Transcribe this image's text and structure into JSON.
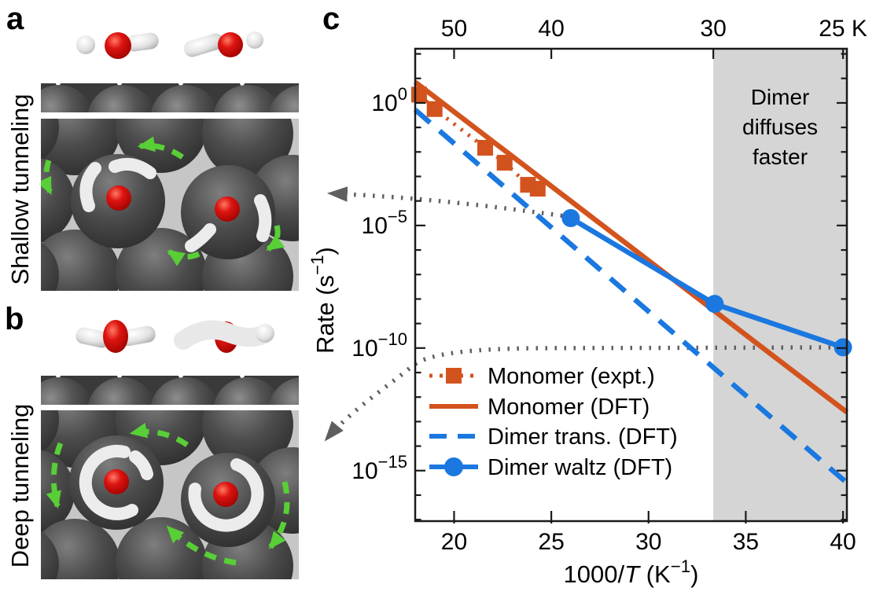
{
  "panels": {
    "a": {
      "letter": "a",
      "side_label": "Shallow tunneling"
    },
    "b": {
      "letter": "b",
      "side_label": "Deep tunneling"
    },
    "c": {
      "letter": "c"
    }
  },
  "colors": {
    "monomer_orange": "#d3531e",
    "dimer_blue": "#1a78e0",
    "shaded_region_gray": "#d5d5d5",
    "annotation_gray": "#5f5f5f",
    "green_arrow": "#58cf36",
    "oxygen_red": "#cc0f0f",
    "hydrogen_white": "#ececec",
    "surface_gray": "#4a4a4a"
  },
  "chart_data": {
    "type": "line",
    "title": "",
    "x_axis": {
      "label_parts": [
        {
          "t": "1000/"
        },
        {
          "t": "T",
          "italic": true
        },
        {
          "t": " (K"
        },
        {
          "t": "−1",
          "sup": true
        },
        {
          "t": ")"
        }
      ],
      "ticks": [
        20,
        25,
        30,
        35,
        40
      ],
      "range": [
        18.0,
        40.2
      ]
    },
    "y_axis": {
      "label_parts": [
        {
          "t": "Rate (s"
        },
        {
          "t": "−1",
          "sup": true
        },
        {
          "t": ")"
        }
      ],
      "scale": "log",
      "tick_exponents": [
        0,
        -5,
        -10,
        -15
      ],
      "range_exponents": [
        2.21,
        -17.06
      ]
    },
    "top_axis": {
      "unit": "K",
      "ticks": [
        {
          "label": "50",
          "x": 20
        },
        {
          "label": "40",
          "x": 25
        },
        {
          "label": "30",
          "x": 33.33
        },
        {
          "label": "25 K",
          "x": 40
        }
      ]
    },
    "shaded_region": {
      "x_start": 33.33,
      "x_end": 40.2,
      "color": "#d5d5d5",
      "label_lines": [
        "Dimer",
        "diffuses",
        "faster"
      ]
    },
    "series": [
      {
        "name": "Monomer (expt.)",
        "color": "#d3531e",
        "style": "dotted",
        "marker": "square",
        "x": [
          18.2,
          19.0,
          21.6,
          22.6,
          23.8,
          24.3
        ],
        "log10_rate": [
          0.34,
          -0.25,
          -1.83,
          -2.44,
          -3.34,
          -3.5
        ]
      },
      {
        "name": "Monomer (DFT)",
        "color": "#d3531e",
        "style": "solid",
        "marker": "none",
        "x": [
          18.0,
          40.2
        ],
        "log10_rate": [
          0.85,
          -12.62
        ]
      },
      {
        "name": "Dimer trans. (DFT)",
        "color": "#1a78e0",
        "style": "dashed",
        "marker": "none",
        "x": [
          18.0,
          40.2
        ],
        "log10_rate": [
          -0.28,
          -15.5
        ]
      },
      {
        "name": "Dimer waltz (DFT)",
        "color": "#1a78e0",
        "style": "solid",
        "marker": "circle",
        "x": [
          26.0,
          33.4,
          40.0
        ],
        "log10_rate": [
          -4.7,
          -8.2,
          -9.97
        ]
      }
    ],
    "legend": {
      "position": "inside-lower-left",
      "items": [
        "Monomer (expt.)",
        "Monomer (DFT)",
        "Dimer trans. (DFT)",
        "Dimer waltz (DFT)"
      ]
    },
    "annotations": [
      {
        "name": "arrow-to-panel-a",
        "from": "Dimer waltz (DFT) first point",
        "to": "panel a",
        "color": "#5f5f5f"
      },
      {
        "name": "arrow-to-panel-b",
        "from": "Dimer waltz (DFT) last point",
        "to": "panel b",
        "color": "#5f5f5f"
      }
    ]
  }
}
